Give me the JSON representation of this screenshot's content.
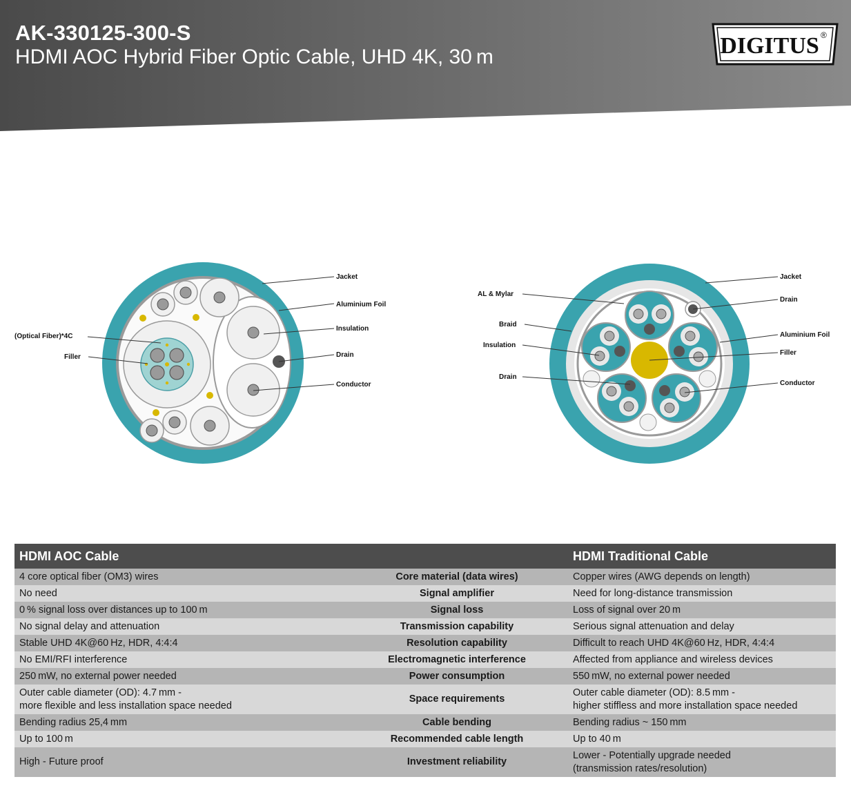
{
  "header": {
    "product_code": "AK-330125-300-S",
    "product_title": "HDMI AOC Hybrid Fiber Optic Cable, UHD 4K, 30 m",
    "brand": "DIGITUS",
    "brand_mark": "®"
  },
  "colors": {
    "jacket_teal": "#3aa3ae",
    "core_yellow": "#d8b800",
    "header_gray": "#5a5a5a",
    "table_header": "#4d4d4d"
  },
  "aoc_diagram": {
    "labels": {
      "jacket": "Jacket",
      "aluminium_foil": "Aluminium Foil",
      "insulation": "Insulation",
      "drain": "Drain",
      "conductor": "Conductor",
      "optical_fiber": "(Optical Fiber)*4C",
      "filler": "Filler"
    }
  },
  "traditional_diagram": {
    "labels": {
      "jacket": "Jacket",
      "drain_top": "Drain",
      "aluminium_foil": "Aluminium Foil",
      "filler": "Filler",
      "conductor": "Conductor",
      "al_mylar": "AL & Mylar",
      "braid": "Braid",
      "insulation": "Insulation",
      "drain_left": "Drain"
    }
  },
  "comparison": {
    "aoc_header": "HDMI AOC Cable",
    "traditional_header": "HDMI Traditional Cable",
    "rows": [
      {
        "aoc": "4 core optical fiber (OM3) wires",
        "criterion": "Core material (data wires)",
        "traditional": "Copper wires (AWG depends on length)"
      },
      {
        "aoc": "No need",
        "criterion": "Signal amplifier",
        "traditional": "Need for long-distance transmission"
      },
      {
        "aoc": "0 % signal loss over distances up to 100 m",
        "criterion": "Signal loss",
        "traditional": "Loss of signal over 20 m"
      },
      {
        "aoc": "No signal delay and attenuation",
        "criterion": "Transmission capability",
        "traditional": "Serious signal attenuation and delay"
      },
      {
        "aoc": "Stable UHD 4K@60 Hz, HDR, 4:4:4",
        "criterion": "Resolution capability",
        "traditional": "Difficult to reach UHD 4K@60 Hz, HDR, 4:4:4"
      },
      {
        "aoc": "No EMI/RFI interference",
        "criterion": "Electromagnetic interference",
        "traditional": "Affected from appliance and wireless devices"
      },
      {
        "aoc": "250 mW, no external power needed",
        "criterion": "Power consumption",
        "traditional": "550 mW, no external power needed"
      },
      {
        "aoc": "Outer cable diameter (OD): 4.7 mm -\nmore flexible and less installation space needed",
        "criterion": "Space requirements",
        "traditional": "Outer cable diameter (OD): 8.5 mm -\nhigher stiffless and more installation space needed"
      },
      {
        "aoc": "Bending radius 25,4 mm",
        "criterion": "Cable bending",
        "traditional": "Bending radius ~ 150 mm"
      },
      {
        "aoc": "Up to 100 m",
        "criterion": "Recommended cable length",
        "traditional": "Up to 40 m"
      },
      {
        "aoc": "High - Future proof",
        "criterion": "Investment reliability",
        "traditional": "Lower - Potentially upgrade needed\n(transmission rates/resolution)"
      }
    ]
  }
}
